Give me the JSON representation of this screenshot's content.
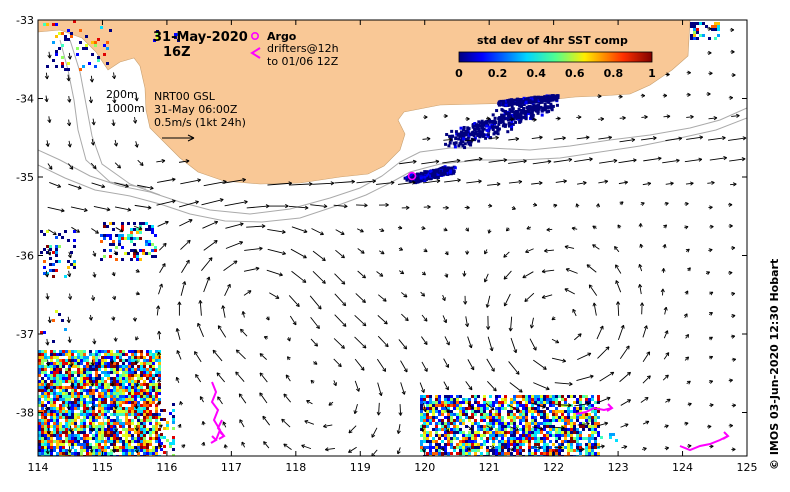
{
  "map": {
    "date": "31-May-2020",
    "hour": "16Z",
    "argo_label": "Argo",
    "drifters_label_1": "drifters@12h",
    "drifters_label_2": "to 01/06 12Z",
    "depth_200": "200m",
    "depth_1000": "1000m",
    "nrt_label": "NRT00 GSL",
    "nrt_time": "31-May 06:00Z",
    "scale_label": "0.5m/s (1kt 24h)",
    "credit": "© IMOS 03-Jun-2020 12:30 Hobart",
    "colorbar": {
      "title": "std dev of 4hr SST comp",
      "ticks": [
        "0",
        "0.2",
        "0.4",
        "0.6",
        "0.8",
        "1"
      ]
    },
    "lon_ticks": [
      "114",
      "115",
      "116",
      "117",
      "118",
      "119",
      "120",
      "121",
      "122",
      "123",
      "124",
      "125"
    ],
    "lat_ticks": [
      "-33",
      "-34",
      "-35",
      "-36",
      "-37",
      "-38"
    ],
    "colors": {
      "land": "#f9c896",
      "argo": "#ff00ff",
      "drifter": "#ff00ff",
      "isobath": "#aaaaaa"
    }
  }
}
